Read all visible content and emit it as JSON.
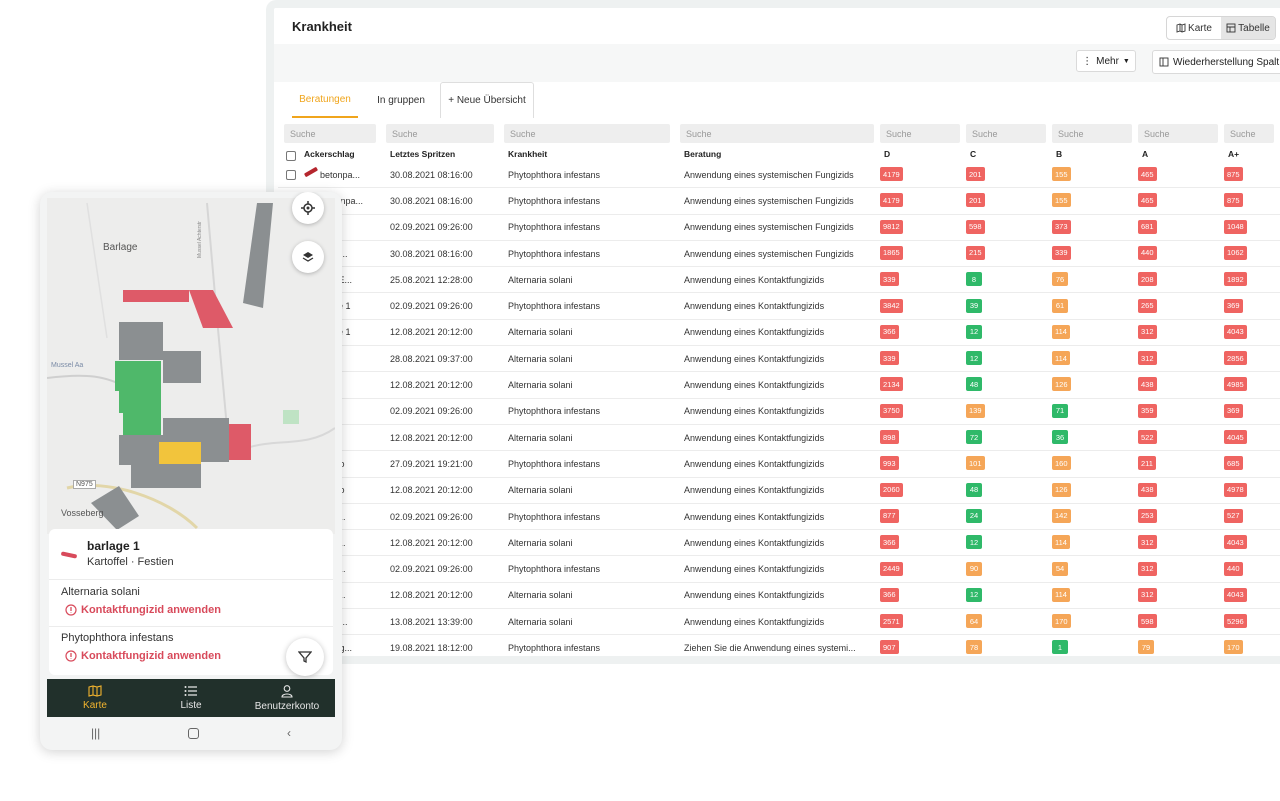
{
  "desktop": {
    "title": "Krankheit",
    "view_toggle": {
      "map_label": "Karte",
      "table_label": "Tabelle"
    },
    "toolbar": {
      "more_label": "Mehr",
      "restore_label": "Wiederherstellung Spalt"
    },
    "tabs": [
      {
        "label": "Beratungen",
        "active": true
      },
      {
        "label": "In gruppen",
        "active": false
      },
      {
        "label": "+ Neue Übersicht",
        "active": false
      }
    ],
    "search_placeholder": "Suche",
    "columns": [
      "Ackerschlag",
      "Letztes Spritzen",
      "Krankheit",
      "Beratung",
      "D",
      "C",
      "B",
      "A",
      "A+"
    ],
    "rows": [
      {
        "field": "betonpa...",
        "date": "30.08.2021 08:16:00",
        "disease": "Phytophthora infestans",
        "advice": "Anwendung eines systemischen Fungizids",
        "D": "4179",
        "C": "201",
        "B": "155",
        "A": "465",
        "Ap": "875",
        "lev": [
          "r",
          "r",
          "o",
          "r",
          "r"
        ]
      },
      {
        "field": "etonpa...",
        "date": "30.08.2021 08:16:00",
        "disease": "Phytophthora infestans",
        "advice": "Anwendung eines systemischen Fungizids",
        "D": "4179",
        "C": "201",
        "B": "155",
        "A": "465",
        "Ap": "875",
        "lev": [
          "r",
          "r",
          "o",
          "r",
          "r"
        ]
      },
      {
        "field": "",
        "date": "02.09.2021 09:26:00",
        "disease": "Phytophthora infestans",
        "advice": "Anwendung eines systemischen Fungizids",
        "D": "9812",
        "C": "598",
        "B": "373",
        "A": "681",
        "Ap": "1048",
        "lev": [
          "r",
          "r",
          "r",
          "r",
          "r"
        ]
      },
      {
        "field": "hui...",
        "date": "30.08.2021 08:16:00",
        "disease": "Phytophthora infestans",
        "advice": "Anwendung eines systemischen Fungizids",
        "D": "1865",
        "C": "215",
        "B": "339",
        "A": "440",
        "Ap": "1062",
        "lev": [
          "r",
          "r",
          "r",
          "r",
          "r"
        ]
      },
      {
        "field": "er E...",
        "date": "25.08.2021 12:28:00",
        "disease": "Alternaria solani",
        "advice": "Anwendung eines Kontaktfungizids",
        "D": "339",
        "C": "8",
        "B": "76",
        "A": "208",
        "Ap": "1892",
        "lev": [
          "r",
          "g",
          "o",
          "r",
          "r"
        ]
      },
      {
        "field": "age 1",
        "date": "02.09.2021 09:26:00",
        "disease": "Phytophthora infestans",
        "advice": "Anwendung eines Kontaktfungizids",
        "D": "3842",
        "C": "39",
        "B": "61",
        "A": "265",
        "Ap": "369",
        "lev": [
          "r",
          "g",
          "o",
          "r",
          "r"
        ]
      },
      {
        "field": "age 1",
        "date": "12.08.2021 20:12:00",
        "disease": "Alternaria solani",
        "advice": "Anwendung eines Kontaktfungizids",
        "D": "366",
        "C": "12",
        "B": "114",
        "A": "312",
        "Ap": "4043",
        "lev": [
          "r",
          "g",
          "o",
          "r",
          "r"
        ]
      },
      {
        "field": "e 2",
        "date": "28.08.2021 09:37:00",
        "disease": "Alternaria solani",
        "advice": "Anwendung eines Kontaktfungizids",
        "D": "339",
        "C": "12",
        "B": "114",
        "A": "312",
        "Ap": "2856",
        "lev": [
          "r",
          "g",
          "o",
          "r",
          "r"
        ]
      },
      {
        "field": "",
        "date": "12.08.2021 20:12:00",
        "disease": "Alternaria solani",
        "advice": "Anwendung eines Kontaktfungizids",
        "D": "2134",
        "C": "48",
        "B": "126",
        "A": "438",
        "Ap": "4985",
        "lev": [
          "r",
          "g",
          "o",
          "r",
          "r"
        ]
      },
      {
        "field": "ten",
        "date": "02.09.2021 09:26:00",
        "disease": "Phytophthora infestans",
        "advice": "Anwendung eines Kontaktfungizids",
        "D": "3750",
        "C": "139",
        "B": "71",
        "A": "359",
        "Ap": "369",
        "lev": [
          "r",
          "o",
          "g",
          "r",
          "r"
        ]
      },
      {
        "field": "ten",
        "date": "12.08.2021 20:12:00",
        "disease": "Alternaria solani",
        "advice": "Anwendung eines Kontaktfungizids",
        "D": "898",
        "C": "72",
        "B": "36",
        "A": "522",
        "Ap": "4045",
        "lev": [
          "r",
          "g",
          "g",
          "r",
          "r"
        ]
      },
      {
        "field": "elzo",
        "date": "27.09.2021 19:21:00",
        "disease": "Phytophthora infestans",
        "advice": "Anwendung eines Kontaktfungizids",
        "D": "993",
        "C": "101",
        "B": "160",
        "A": "211",
        "Ap": "685",
        "lev": [
          "r",
          "o",
          "o",
          "r",
          "r"
        ]
      },
      {
        "field": "elzo",
        "date": "12.08.2021 20:12:00",
        "disease": "Alternaria solani",
        "advice": "Anwendung eines Kontaktfungizids",
        "D": "2060",
        "C": "48",
        "B": "126",
        "A": "438",
        "Ap": "4978",
        "lev": [
          "r",
          "g",
          "o",
          "r",
          "r"
        ]
      },
      {
        "field": "nb...",
        "date": "02.09.2021 09:26:00",
        "disease": "Phytophthora infestans",
        "advice": "Anwendung eines Kontaktfungizids",
        "D": "877",
        "C": "24",
        "B": "142",
        "A": "253",
        "Ap": "527",
        "lev": [
          "r",
          "g",
          "o",
          "r",
          "r"
        ]
      },
      {
        "field": "nb...",
        "date": "12.08.2021 20:12:00",
        "disease": "Alternaria solani",
        "advice": "Anwendung eines Kontaktfungizids",
        "D": "366",
        "C": "12",
        "B": "114",
        "A": "312",
        "Ap": "4043",
        "lev": [
          "r",
          "g",
          "o",
          "r",
          "r"
        ]
      },
      {
        "field": "nb...",
        "date": "02.09.2021 09:26:00",
        "disease": "Phytophthora infestans",
        "advice": "Anwendung eines Kontaktfungizids",
        "D": "2449",
        "C": "90",
        "B": "54",
        "A": "312",
        "Ap": "440",
        "lev": [
          "r",
          "o",
          "o",
          "r",
          "r"
        ]
      },
      {
        "field": "nb...",
        "date": "12.08.2021 20:12:00",
        "disease": "Alternaria solani",
        "advice": "Anwendung eines Kontaktfungizids",
        "D": "366",
        "C": "12",
        "B": "114",
        "A": "312",
        "Ap": "4043",
        "lev": [
          "r",
          "g",
          "o",
          "r",
          "r"
        ]
      },
      {
        "field": "hui...",
        "date": "13.08.2021 13:39:00",
        "disease": "Alternaria solani",
        "advice": "Anwendung eines Kontaktfungizids",
        "D": "2571",
        "C": "64",
        "B": "170",
        "A": "598",
        "Ap": "5296",
        "lev": [
          "r",
          "o",
          "o",
          "r",
          "r"
        ]
      },
      {
        "field": "slag...",
        "date": "19.08.2021 18:12:00",
        "disease": "Phytophthora infestans",
        "advice": "Ziehen Sie die Anwendung eines systemi...",
        "D": "907",
        "C": "78",
        "B": "1",
        "A": "79",
        "Ap": "170",
        "lev": [
          "r",
          "o",
          "g",
          "o",
          "o"
        ]
      }
    ],
    "badge_colors": {
      "r": "#ef6461",
      "o": "#f5a658",
      "g": "#2fb969"
    }
  },
  "phone": {
    "map_labels": [
      "Barlage",
      "Mussel Aa",
      "Vosseberg",
      "N975",
      "Mussel Achterstr"
    ],
    "card": {
      "title": "barlage 1",
      "subtitle": "Kartoffel · Festien",
      "diseases": [
        {
          "name": "Alternaria solani",
          "action": "Kontaktfungizid anwenden"
        },
        {
          "name": "Phytophthora infestans",
          "action": "Kontaktfungizid anwenden"
        }
      ]
    },
    "nav": [
      {
        "label": "Karte",
        "icon": "map-icon",
        "active": true
      },
      {
        "label": "Liste",
        "icon": "list-icon",
        "active": false
      },
      {
        "label": "Benutzerkonto",
        "icon": "user-icon",
        "active": false
      }
    ],
    "system_nav": [
      "recent-apps-icon",
      "home-icon",
      "back-icon"
    ]
  }
}
